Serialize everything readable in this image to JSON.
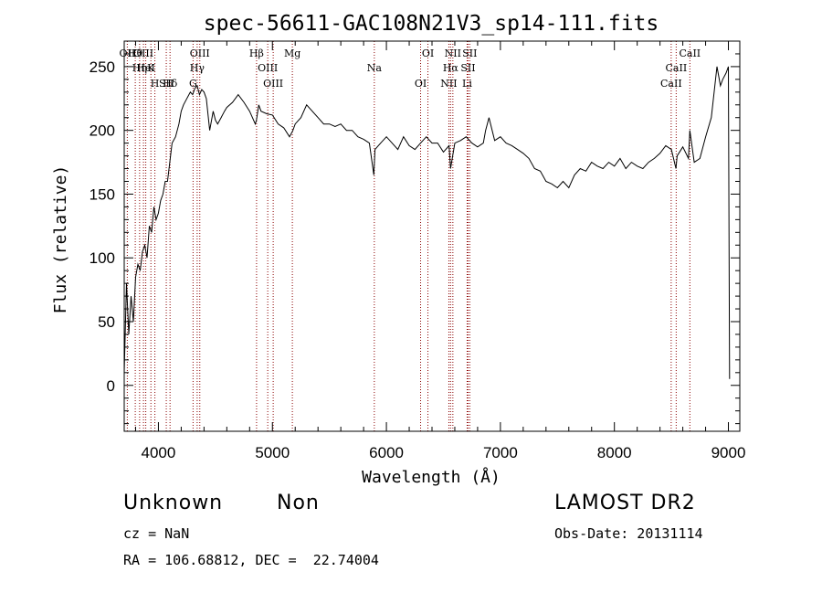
{
  "chart_data": {
    "type": "line",
    "title": "spec-56611-GAC108N21V3_sp14-111.fits",
    "xlabel": "Wavelength (Å)",
    "ylabel": "Flux (relative)",
    "xlim": [
      3700,
      9100
    ],
    "ylim": [
      -36,
      270
    ],
    "x_ticks": [
      4000,
      5000,
      6000,
      7000,
      8000,
      9000
    ],
    "y_ticks": [
      0,
      50,
      100,
      150,
      200,
      250
    ],
    "grid": false,
    "line_color": "#000000",
    "marker_color": "#8b0000",
    "series": [
      {
        "x": [
          3700,
          3720,
          3740,
          3760,
          3780,
          3800,
          3820,
          3840,
          3860,
          3880,
          3900,
          3920,
          3940,
          3960,
          3980,
          4000,
          4020,
          4040,
          4060,
          4080,
          4100,
          4120,
          4150,
          4180,
          4200,
          4220,
          4250,
          4280,
          4300,
          4320,
          4340,
          4360,
          4380,
          4400,
          4420,
          4450,
          4480,
          4500,
          4520,
          4550,
          4580,
          4600,
          4650,
          4700,
          4750,
          4800,
          4850,
          4860,
          4880,
          4900,
          4950,
          5000,
          5050,
          5100,
          5150,
          5180,
          5200,
          5250,
          5300,
          5350,
          5400,
          5450,
          5500,
          5550,
          5600,
          5650,
          5700,
          5750,
          5800,
          5850,
          5890,
          5900,
          5950,
          6000,
          6050,
          6100,
          6150,
          6200,
          6250,
          6300,
          6350,
          6400,
          6450,
          6500,
          6550,
          6563,
          6600,
          6650,
          6700,
          6750,
          6800,
          6850,
          6870,
          6900,
          6950,
          7000,
          7050,
          7100,
          7150,
          7200,
          7250,
          7300,
          7350,
          7400,
          7450,
          7500,
          7550,
          7600,
          7650,
          7700,
          7750,
          7800,
          7850,
          7900,
          7950,
          8000,
          8050,
          8100,
          8150,
          8200,
          8250,
          8300,
          8350,
          8400,
          8450,
          8500,
          8540,
          8550,
          8600,
          8650,
          8662,
          8700,
          8750,
          8800,
          8850,
          8900,
          8930,
          8950,
          8980,
          9000,
          9010
        ],
        "y": [
          10,
          80,
          40,
          70,
          50,
          85,
          95,
          90,
          105,
          110,
          100,
          125,
          120,
          140,
          130,
          135,
          145,
          150,
          160,
          160,
          175,
          190,
          195,
          205,
          215,
          220,
          225,
          230,
          228,
          233,
          235,
          228,
          232,
          230,
          225,
          200,
          215,
          208,
          205,
          210,
          215,
          218,
          222,
          228,
          222,
          215,
          205,
          208,
          220,
          215,
          213,
          212,
          205,
          202,
          195,
          200,
          205,
          210,
          220,
          215,
          210,
          205,
          205,
          203,
          205,
          200,
          200,
          195,
          193,
          190,
          165,
          185,
          190,
          195,
          190,
          185,
          195,
          188,
          185,
          190,
          195,
          190,
          190,
          183,
          188,
          170,
          190,
          192,
          195,
          190,
          187,
          190,
          200,
          210,
          192,
          195,
          190,
          188,
          185,
          182,
          178,
          170,
          168,
          160,
          158,
          155,
          160,
          155,
          165,
          170,
          168,
          175,
          172,
          170,
          175,
          172,
          178,
          170,
          175,
          172,
          170,
          175,
          178,
          182,
          188,
          185,
          170,
          180,
          187,
          178,
          200,
          175,
          178,
          195,
          210,
          250,
          235,
          240,
          245,
          250,
          5
        ]
      }
    ],
    "line_markers": [
      {
        "label": "Hθ",
        "x": 3797
      },
      {
        "label": "K",
        "x": 3934
      },
      {
        "label": "Hδ",
        "x": 4102
      },
      {
        "label": "OII",
        "x": 3727
      },
      {
        "label": "HeI",
        "x": 3889
      },
      {
        "label": "SII",
        "x": 4069
      },
      {
        "label": "OIII",
        "x": 3869
      },
      {
        "label": "Hη",
        "x": 3835
      },
      {
        "label": "H",
        "x": 3969
      },
      {
        "label": "OIII",
        "x": 4363
      },
      {
        "label": "Hγ",
        "x": 4340
      },
      {
        "label": "G",
        "x": 4304
      },
      {
        "label": "Hβ",
        "x": 4861
      },
      {
        "label": "OIII",
        "x": 4959
      },
      {
        "label": "OIII",
        "x": 5007
      },
      {
        "label": "Mg",
        "x": 5175
      },
      {
        "label": "Na",
        "x": 5894
      },
      {
        "label": "OI",
        "x": 6300
      },
      {
        "label": "OI",
        "x": 6364
      },
      {
        "label": "Hα",
        "x": 6563
      },
      {
        "label": "NII",
        "x": 6548
      },
      {
        "label": "NII",
        "x": 6583
      },
      {
        "label": "SII",
        "x": 6716
      },
      {
        "label": "Li",
        "x": 6708
      },
      {
        "label": "SII",
        "x": 6731
      },
      {
        "label": "CaII",
        "x": 8542
      },
      {
        "label": "CaII",
        "x": 8498
      },
      {
        "label": "CaII",
        "x": 8662
      }
    ]
  },
  "info": {
    "object_class": "Unknown",
    "subclass": "Non",
    "survey": "LAMOST DR2",
    "cz": "cz = NaN",
    "obs_date": "Obs-Date: 20131114",
    "radec": "RA = 106.68812, DEC =  22.74004"
  }
}
